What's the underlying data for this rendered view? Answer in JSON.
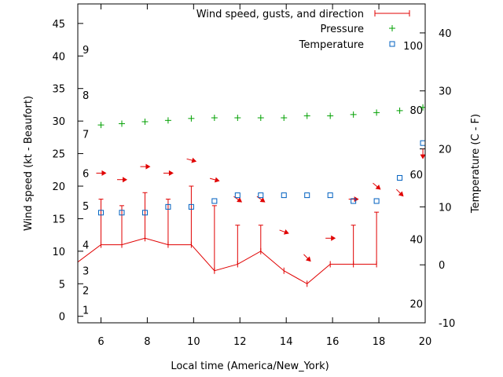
{
  "chart_data": {
    "type": "line",
    "xlabel": "Local time (America/New_York)",
    "ylabel": "Wind speed (kt - Beaufort)",
    "y2label": "Temperature (C - F)",
    "xlim": [
      5,
      20
    ],
    "ylim": [
      -1,
      48
    ],
    "y2lim": [
      -10,
      45
    ],
    "xticks": [
      6,
      8,
      10,
      12,
      14,
      16,
      18,
      20
    ],
    "yticks": [
      0,
      5,
      10,
      15,
      20,
      25,
      30,
      35,
      40,
      45
    ],
    "y2ticks": [
      -10,
      0,
      10,
      20,
      30,
      40
    ],
    "beaufort_labels": [
      {
        "label": "1",
        "y": 1
      },
      {
        "label": "2",
        "y": 4
      },
      {
        "label": "3",
        "y": 7
      },
      {
        "label": "4",
        "y": 11
      },
      {
        "label": "5",
        "y": 17
      },
      {
        "label": "6",
        "y": 22
      },
      {
        "label": "7",
        "y": 28
      },
      {
        "label": "8",
        "y": 34
      },
      {
        "label": "9",
        "y": 41
      }
    ],
    "fahrenheit_labels": [
      {
        "label": "20",
        "y2": -6.7
      },
      {
        "label": "40",
        "y2": 4.4
      },
      {
        "label": "60",
        "y2": 15.6
      },
      {
        "label": "80",
        "y2": 26.7
      },
      {
        "label": "100",
        "y2": 37.8
      }
    ],
    "legend": {
      "position": "top-right",
      "entries": [
        "Wind speed, gusts, and direction",
        "Pressure",
        "Temperature"
      ]
    },
    "colors": {
      "wind": "#e00000",
      "pressure": "#00a000",
      "temperature": "#0060c0"
    },
    "series": [
      {
        "name": "Wind speed, gusts, and direction",
        "style": "line-with-gust-bars",
        "points": [
          {
            "x": 4.5,
            "y": 7
          },
          {
            "x": 6,
            "y": 11,
            "gust": 18
          },
          {
            "x": 6.9,
            "y": 11,
            "gust": 17
          },
          {
            "x": 7.9,
            "y": 12,
            "gust": 19
          },
          {
            "x": 8.9,
            "y": 11,
            "gust": 18
          },
          {
            "x": 9.9,
            "y": 11,
            "gust": 20
          },
          {
            "x": 10.9,
            "y": 7,
            "gust": 17
          },
          {
            "x": 11.9,
            "y": 8,
            "gust": 14
          },
          {
            "x": 12.9,
            "y": 10,
            "gust": 14
          },
          {
            "x": 13.9,
            "y": 7
          },
          {
            "x": 14.9,
            "y": 5
          },
          {
            "x": 15.9,
            "y": 8
          },
          {
            "x": 16.9,
            "y": 8,
            "gust": 14
          },
          {
            "x": 17.9,
            "y": 8,
            "gust": 16
          }
        ]
      },
      {
        "name": "Wind direction",
        "style": "arrows",
        "points": [
          {
            "x": 6,
            "y": 22,
            "dir": 0
          },
          {
            "x": 6.9,
            "y": 21,
            "dir": 0
          },
          {
            "x": 7.9,
            "y": 23,
            "dir": 0
          },
          {
            "x": 8.9,
            "y": 22,
            "dir": 0
          },
          {
            "x": 9.9,
            "y": 24,
            "dir": 15
          },
          {
            "x": 10.9,
            "y": 21,
            "dir": 15
          },
          {
            "x": 11.9,
            "y": 18,
            "dir": 35
          },
          {
            "x": 12.9,
            "y": 18,
            "dir": 35
          },
          {
            "x": 13.9,
            "y": 13,
            "dir": 20
          },
          {
            "x": 14.9,
            "y": 9,
            "dir": 45
          },
          {
            "x": 15.9,
            "y": 12,
            "dir": 0
          },
          {
            "x": 16.9,
            "y": 18,
            "dir": 0
          },
          {
            "x": 17.9,
            "y": 20,
            "dir": 40
          },
          {
            "x": 18.9,
            "y": 19,
            "dir": 45
          },
          {
            "x": 19.9,
            "y": 25,
            "dir": 90
          }
        ]
      },
      {
        "name": "Pressure",
        "style": "plus",
        "points": [
          {
            "x": 6,
            "y": 29.4
          },
          {
            "x": 6.9,
            "y": 29.6
          },
          {
            "x": 7.9,
            "y": 29.9
          },
          {
            "x": 8.9,
            "y": 30.1
          },
          {
            "x": 9.9,
            "y": 30.4
          },
          {
            "x": 10.9,
            "y": 30.5
          },
          {
            "x": 11.9,
            "y": 30.5
          },
          {
            "x": 12.9,
            "y": 30.5
          },
          {
            "x": 13.9,
            "y": 30.5
          },
          {
            "x": 14.9,
            "y": 30.8
          },
          {
            "x": 15.9,
            "y": 30.8
          },
          {
            "x": 16.9,
            "y": 31.0
          },
          {
            "x": 17.9,
            "y": 31.3
          },
          {
            "x": 18.9,
            "y": 31.6
          },
          {
            "x": 19.9,
            "y": 32.1
          }
        ]
      },
      {
        "name": "Temperature",
        "style": "square",
        "axis": "y2",
        "points": [
          {
            "x": 6,
            "y2": 9
          },
          {
            "x": 6.9,
            "y2": 9
          },
          {
            "x": 7.9,
            "y2": 9
          },
          {
            "x": 8.9,
            "y2": 10
          },
          {
            "x": 9.9,
            "y2": 10
          },
          {
            "x": 10.9,
            "y2": 11
          },
          {
            "x": 11.9,
            "y2": 12
          },
          {
            "x": 12.9,
            "y2": 12
          },
          {
            "x": 13.9,
            "y2": 12
          },
          {
            "x": 14.9,
            "y2": 12
          },
          {
            "x": 15.9,
            "y2": 12
          },
          {
            "x": 16.9,
            "y2": 11
          },
          {
            "x": 17.9,
            "y2": 11
          },
          {
            "x": 18.9,
            "y2": 15
          },
          {
            "x": 19.9,
            "y2": 21
          }
        ]
      }
    ]
  }
}
